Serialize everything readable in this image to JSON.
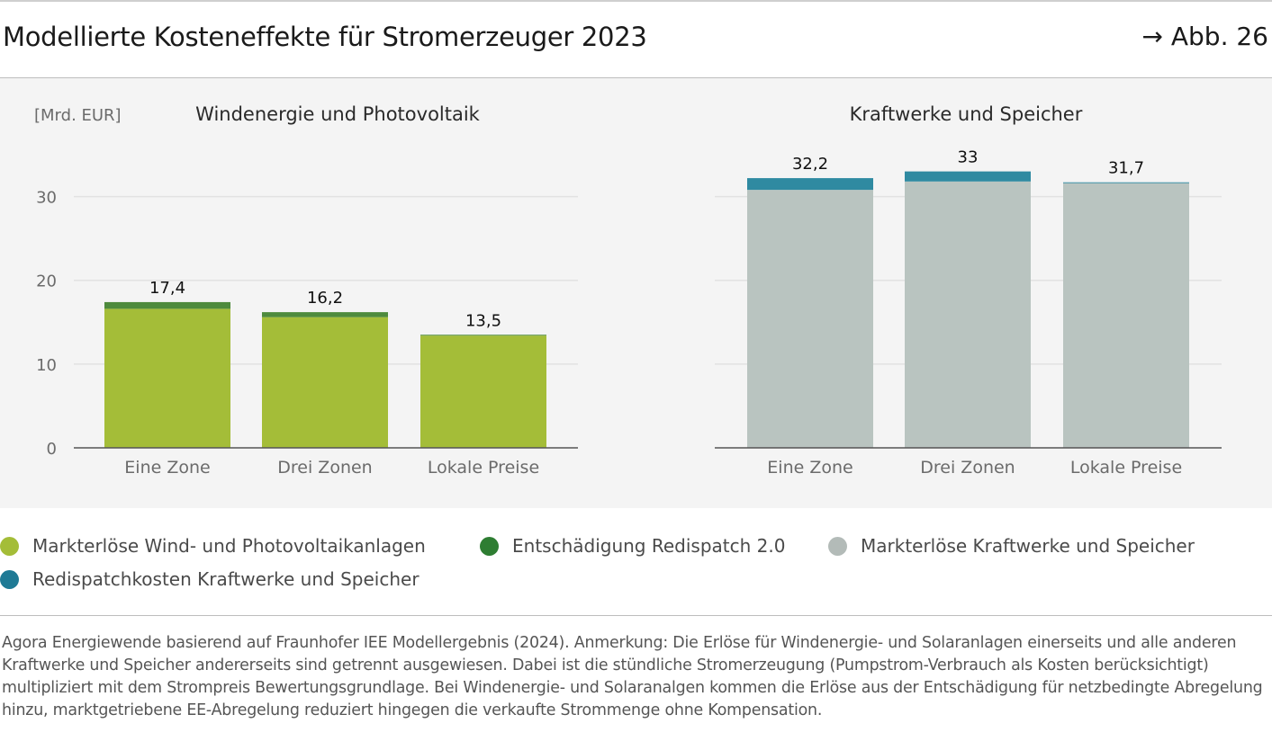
{
  "header": {
    "title": "Modellierte Kosteneffekte für Stromerzeuger 2023",
    "figure_ref": "→ Abb. 26"
  },
  "colors": {
    "green": "#a4bd38",
    "dark_green": "#4e8a3d",
    "gray": "#b9c4c0",
    "teal": "#2f8aa1",
    "legend_dark_green": "#2e7d32",
    "legend_teal": "#1f7a95",
    "legend_gray": "#b3bbb8"
  },
  "legend": {
    "items": [
      {
        "label": "Markterlöse Wind- und Photovoltaikanlagen",
        "color": "#a4bd38"
      },
      {
        "label": "Entschädigung Redispatch 2.0",
        "color": "#2e7d32"
      },
      {
        "label": "Markterlöse Kraftwerke und Speicher",
        "color": "#b3bbb8"
      },
      {
        "label": "Redispatchkosten Kraftwerke und Speicher",
        "color": "#1f7a95"
      }
    ]
  },
  "footnote": "Agora Energiewende basierend auf Fraunhofer IEE Modellergebnis (2024). Anmerkung: Die Erlöse für Windenergie- und Solaranlagen einerseits und alle anderen Kraftwerke und Speicher andererseits sind getrennt ausgewiesen. Dabei ist die stündliche Stromerzeugung (Pumpstrom-Verbrauch als Kosten berücksichtigt) multipliziert mit dem Strompreis Bewertungsgrundlage. Bei Windenergie- und Solaranalgen kommen die Erlöse aus der Entschädigung für netzbedingte Abregelung hinzu, marktgetriebene EE-Abregelung reduziert hingegen die verkaufte Strommenge ohne Kompensation.",
  "chart_data": [
    {
      "type": "bar",
      "stacked": true,
      "title": "Windenergie und Photovoltaik",
      "ylabel": "[Mrd. EUR]",
      "xlabel": "",
      "ylim": [
        0,
        35
      ],
      "yticks": [
        0,
        10,
        20,
        30
      ],
      "grid": true,
      "categories": [
        "Eine Zone",
        "Drei Zonen",
        "Lokale Preise"
      ],
      "series": [
        {
          "name": "Markterlöse Wind- und Photovoltaikanlagen",
          "values": [
            16.6,
            15.6,
            13.4
          ],
          "color": "#a4bd38"
        },
        {
          "name": "Entschädigung Redispatch 2.0",
          "values": [
            0.8,
            0.6,
            0.1
          ],
          "color": "#4e8a3d"
        }
      ],
      "totals": [
        17.4,
        16.2,
        13.5
      ],
      "total_labels": [
        "17,4",
        "16,2",
        "13,5"
      ]
    },
    {
      "type": "bar",
      "stacked": true,
      "title": "Kraftwerke und Speicher",
      "ylabel": "",
      "xlabel": "",
      "ylim": [
        0,
        35
      ],
      "yticks": [
        0,
        10,
        20,
        30
      ],
      "grid": true,
      "categories": [
        "Eine Zone",
        "Drei Zonen",
        "Lokale Preise"
      ],
      "series": [
        {
          "name": "Markterlöse Kraftwerke und Speicher",
          "values": [
            30.8,
            31.8,
            31.6
          ],
          "color": "#b9c4c0"
        },
        {
          "name": "Redispatchkosten Kraftwerke und Speicher",
          "values": [
            1.4,
            1.2,
            0.1
          ],
          "color": "#2f8aa1"
        }
      ],
      "totals": [
        32.2,
        33,
        31.7
      ],
      "total_labels": [
        "32,2",
        "33",
        "31,7"
      ]
    }
  ]
}
